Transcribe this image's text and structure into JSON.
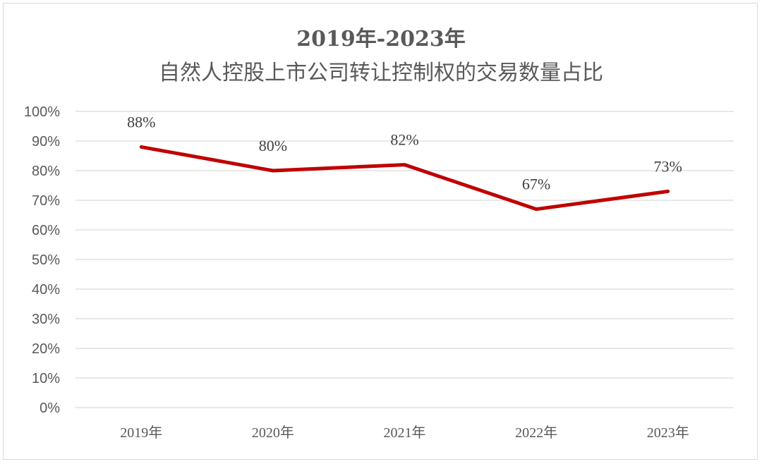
{
  "chart_data": {
    "type": "line",
    "title_line1": "2019年-2023年",
    "title_line2": "自然人控股上市公司转让控制权的交易数量占比",
    "categories": [
      "2019年",
      "2020年",
      "2021年",
      "2022年",
      "2023年"
    ],
    "series": [
      {
        "values": [
          88,
          80,
          82,
          67,
          73
        ],
        "labels": [
          "88%",
          "80%",
          "82%",
          "67%",
          "73%"
        ]
      }
    ],
    "y_ticks": [
      "0%",
      "10%",
      "20%",
      "30%",
      "40%",
      "50%",
      "60%",
      "70%",
      "80%",
      "90%",
      "100%"
    ],
    "ylim": [
      0,
      100
    ],
    "grid": true,
    "legend": "none",
    "line_color": "#c00000",
    "grid_color": "#d9d9d9"
  }
}
